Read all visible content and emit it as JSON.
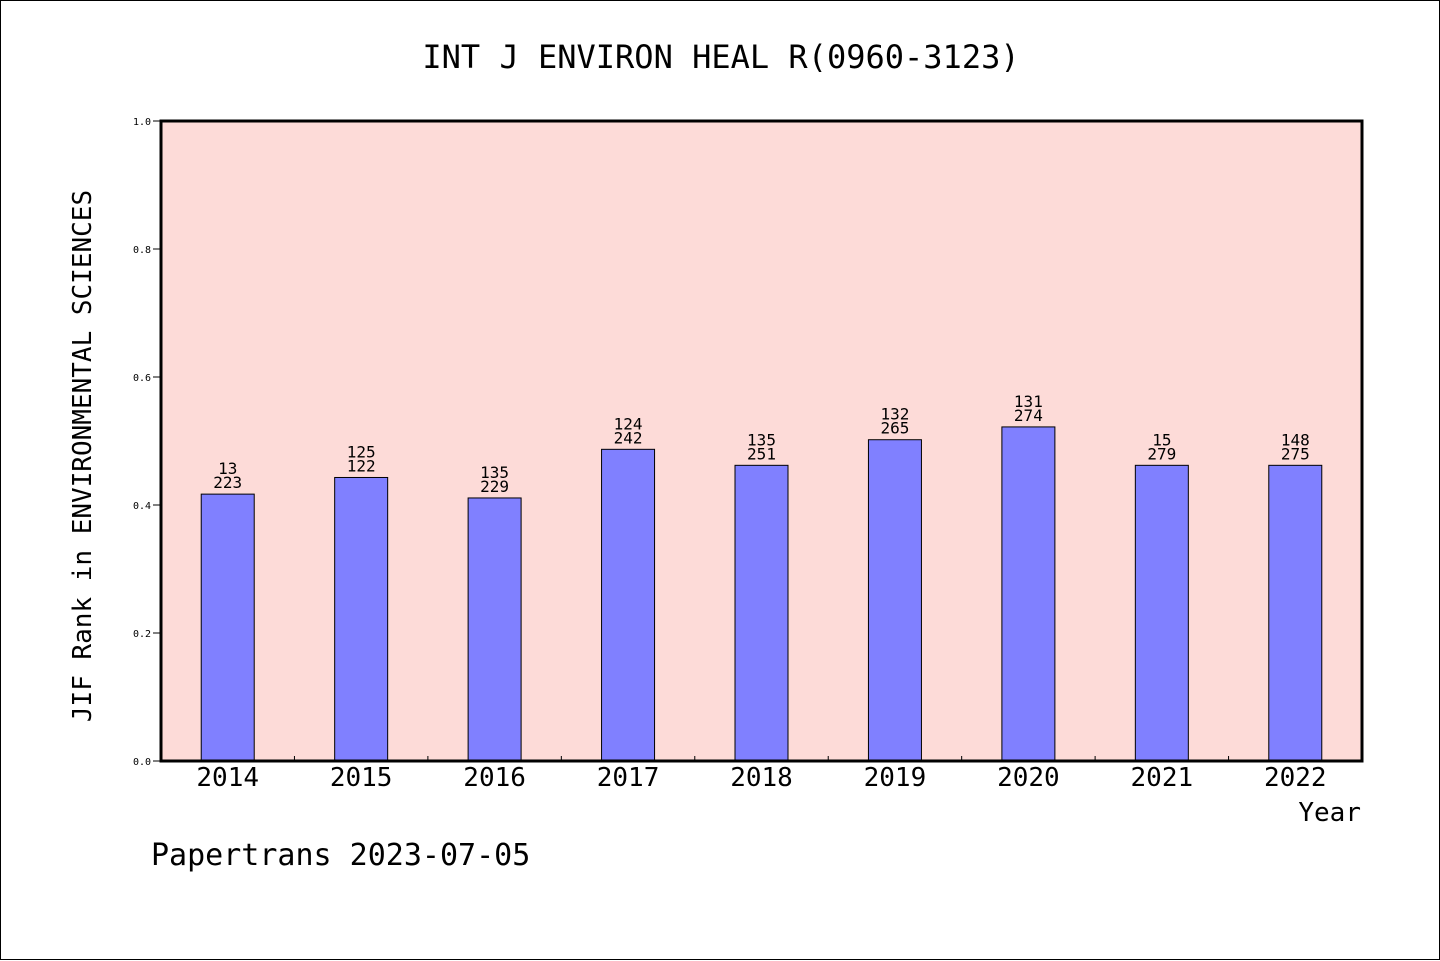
{
  "chart_data": {
    "type": "bar",
    "title": "INT J ENVIRON HEAL R(0960-3123)",
    "xlabel": "Year",
    "ylabel": "JIF Rank in ENVIRONMENTAL SCIENCES",
    "categories": [
      "2014",
      "2015",
      "2016",
      "2017",
      "2018",
      "2019",
      "2020",
      "2021",
      "2022"
    ],
    "values": [
      0.417,
      0.443,
      0.411,
      0.487,
      0.462,
      0.502,
      0.522,
      0.462,
      0.462
    ],
    "labels_top": [
      "13",
      "125",
      "135",
      "124",
      "135",
      "132",
      "131",
      "15",
      "148"
    ],
    "labels_bottom": [
      "223",
      "122",
      "229",
      "242",
      "251",
      "265",
      "274",
      "279",
      "275"
    ],
    "ylim": [
      0,
      1.0
    ],
    "yticks": [
      "0.0",
      "0.2",
      "0.4",
      "0.6",
      "0.8",
      "1.0"
    ],
    "grid": false,
    "colors": {
      "plot_bg": "#fddbd8",
      "bar": "#8080ff",
      "bar_edge": "#000000"
    }
  },
  "footer": "Papertrans 2023-07-05"
}
